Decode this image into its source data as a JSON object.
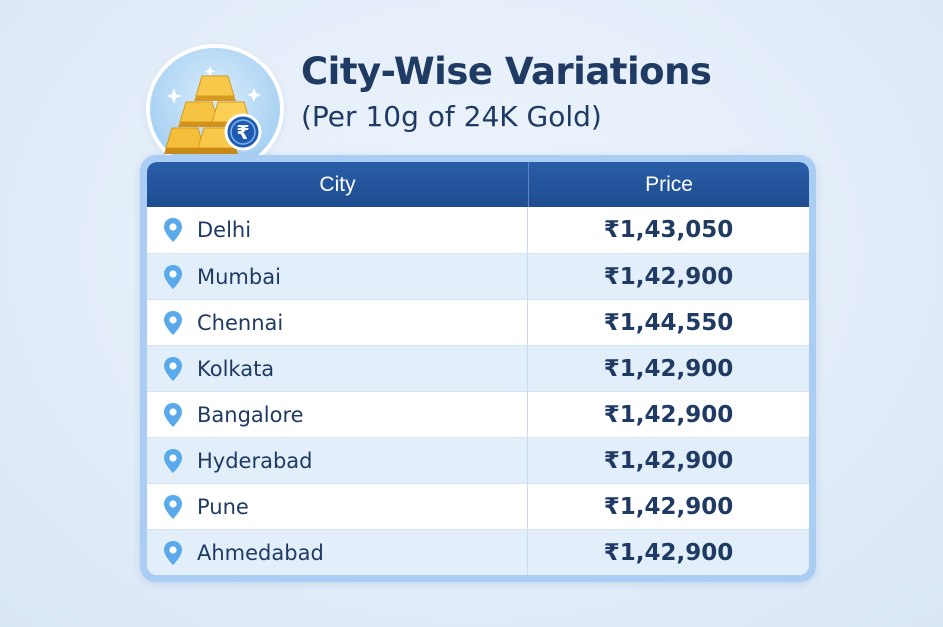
{
  "header": {
    "title": "City-Wise Variations",
    "subtitle": "(Per 10g of 24K Gold)",
    "logo_icon": "gold-bars-rupee-icon"
  },
  "table": {
    "columns": [
      "City",
      "Price"
    ],
    "rows": [
      {
        "city": "Delhi",
        "price": "₹1,43,050"
      },
      {
        "city": "Mumbai",
        "price": "₹1,42,900"
      },
      {
        "city": "Chennai",
        "price": "₹1,44,550"
      },
      {
        "city": "Kolkata",
        "price": "₹1,42,900"
      },
      {
        "city": "Bangalore",
        "price": "₹1,42,900"
      },
      {
        "city": "Hyderabad",
        "price": "₹1,42,900"
      },
      {
        "city": "Pune",
        "price": "₹1,42,900"
      },
      {
        "city": "Ahmedabad",
        "price": "₹1,42,900"
      }
    ],
    "row_icon": "location-pin-icon"
  },
  "colors": {
    "header_bg": "#1e4c8f",
    "text": "#1f3a63",
    "pin": "#5aa9ea",
    "frame": "#a9cdf3",
    "stripe": "#e3eefb"
  }
}
